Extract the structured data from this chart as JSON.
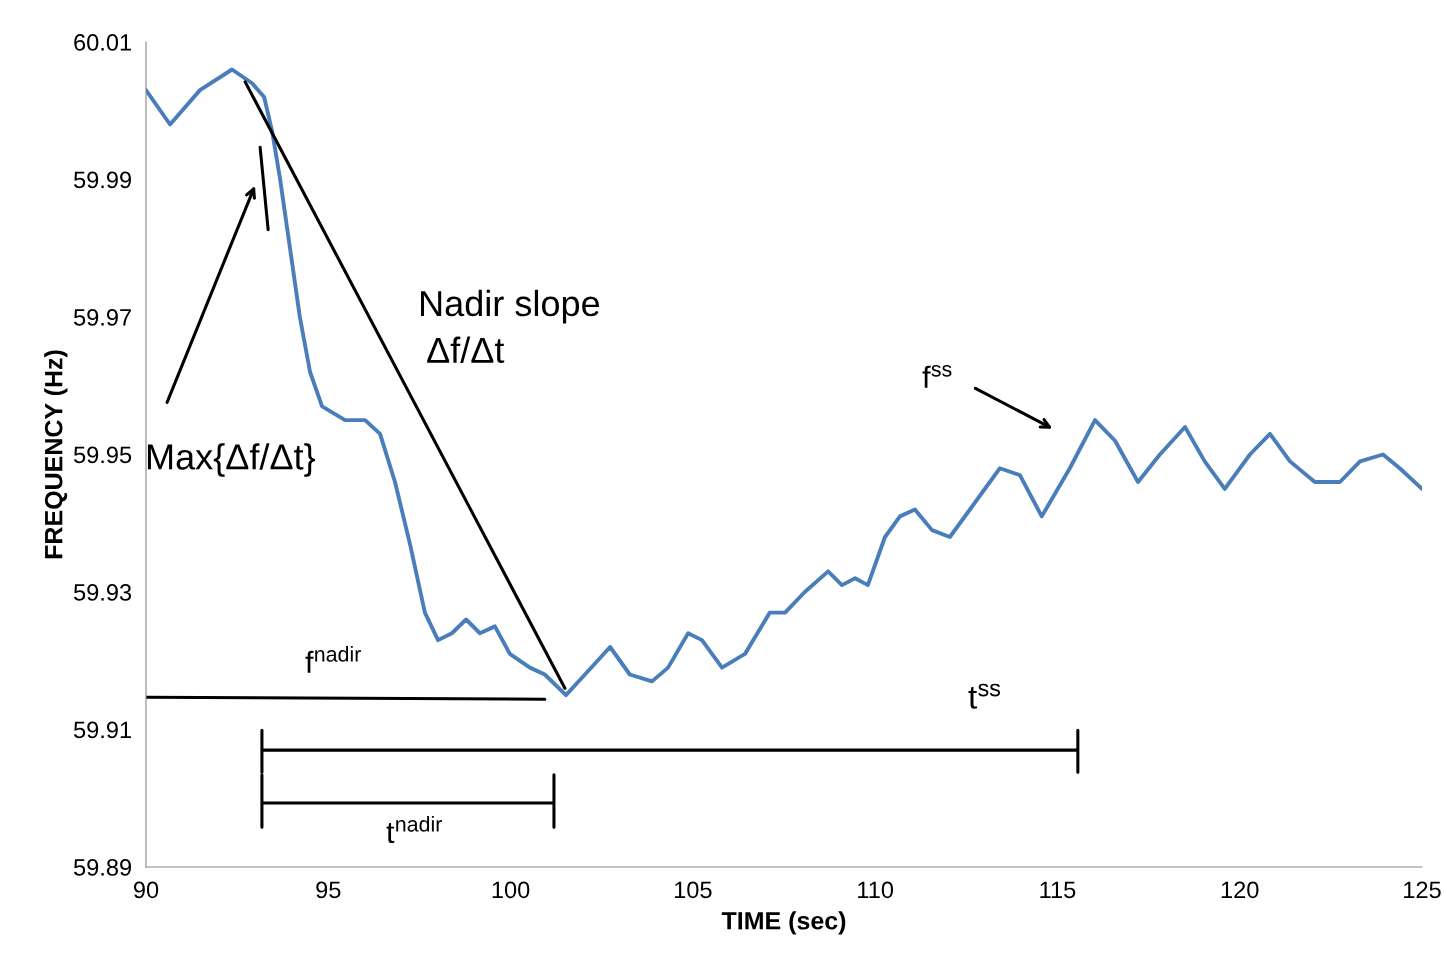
{
  "chart_data": {
    "type": "line",
    "xlabel": "TIME (sec)",
    "ylabel": "FREQUENCY (Hz)",
    "xlim": [
      90,
      125
    ],
    "xticks": [
      90,
      95,
      100,
      105,
      110,
      115,
      120,
      125
    ],
    "ylim": [
      59.89,
      60.01
    ],
    "yticks": [
      {
        "value": 59.89,
        "label": "59.89"
      },
      {
        "value": 59.91,
        "label": "59.91"
      },
      {
        "value": 59.93,
        "label": "59.93"
      },
      {
        "value": 59.95,
        "label": "59.95"
      },
      {
        "value": 59.97,
        "label": "59.97"
      },
      {
        "value": 59.99,
        "label": "59.99"
      },
      {
        "value": 60.01,
        "label": "60.01"
      }
    ],
    "grid": false,
    "legend": false,
    "marker": "none",
    "line_style": "solid",
    "series": [
      {
        "color": "#4a7ebb",
        "x": [
          90,
          90.66,
          91.48,
          92.36,
          92.91,
          93.24,
          93.46,
          93.68,
          93.95,
          94.22,
          94.5,
          94.83,
          95.46,
          96.01,
          96.42,
          96.83,
          97.24,
          97.65,
          98.01,
          98.39,
          98.78,
          99.16,
          99.57,
          99.98,
          100.53,
          100.94,
          101.52,
          102.04,
          102.73,
          103.27,
          103.88,
          104.32,
          104.87,
          105.25,
          105.8,
          106.43,
          107.11,
          107.53,
          108.07,
          108.71,
          109.09,
          109.45,
          109.8,
          110.27,
          110.68,
          111.09,
          111.56,
          112.05,
          112.6,
          113.42,
          113.97,
          114.57,
          115.34,
          116.03,
          116.58,
          117.21,
          117.81,
          118.5,
          119.04,
          119.59,
          120.28,
          120.83,
          121.38,
          122.06,
          122.75,
          123.3,
          123.93,
          124.39,
          125
        ],
        "values": [
          60.003,
          59.998,
          60.003,
          60.006,
          60.004,
          60.002,
          59.997,
          59.99,
          59.98,
          59.97,
          59.962,
          59.957,
          59.955,
          59.955,
          59.953,
          59.946,
          59.937,
          59.927,
          59.923,
          59.924,
          59.926,
          59.924,
          59.925,
          59.921,
          59.919,
          59.918,
          59.915,
          59.918,
          59.922,
          59.918,
          59.917,
          59.919,
          59.924,
          59.923,
          59.919,
          59.921,
          59.927,
          59.927,
          59.93,
          59.933,
          59.931,
          59.932,
          59.931,
          59.938,
          59.941,
          59.942,
          59.939,
          59.938,
          59.942,
          59.948,
          59.947,
          59.941,
          59.948,
          59.955,
          59.952,
          59.946,
          59.95,
          59.954,
          59.949,
          59.945,
          59.95,
          59.953,
          59.949,
          59.946,
          59.946,
          59.949,
          59.95,
          59.948,
          59.945
        ]
      },
      {
        "type": "line",
        "color": "#000000",
        "x": [
          92.72,
          101.49
        ],
        "values": [
          60.0042,
          59.916
        ]
      },
      {
        "type": "line",
        "color": "#000000",
        "x": [
          93.13,
          93.35
        ],
        "values": [
          59.9947,
          59.9827
        ]
      },
      {
        "type": "line",
        "color": "#000000",
        "x": [
          90,
          100.94
        ],
        "values": [
          59.9147,
          59.9144
        ]
      },
      {
        "type": "line",
        "color": "#000000",
        "x": [
          93.18,
          93.18,
          93.18,
          115.56,
          115.56,
          115.56
        ],
        "values": [
          59.9099,
          59.9038,
          59.907,
          59.907,
          59.9099,
          59.9038
        ]
      },
      {
        "type": "line",
        "color": "#000000",
        "x": [
          93.18,
          93.18,
          93.18,
          101.19,
          101.19,
          101.19
        ],
        "values": [
          59.9034,
          59.8958,
          59.8993,
          59.8993,
          59.9034,
          59.8958
        ]
      }
    ],
    "annotations": [
      "Nadir slope\n Δf/Δt",
      "Max{Δf/Δt}",
      "f$^{nadir}$",
      "t$^{ss}$",
      "f$^{ss}$",
      "t$^{nadir}$"
    ]
  }
}
